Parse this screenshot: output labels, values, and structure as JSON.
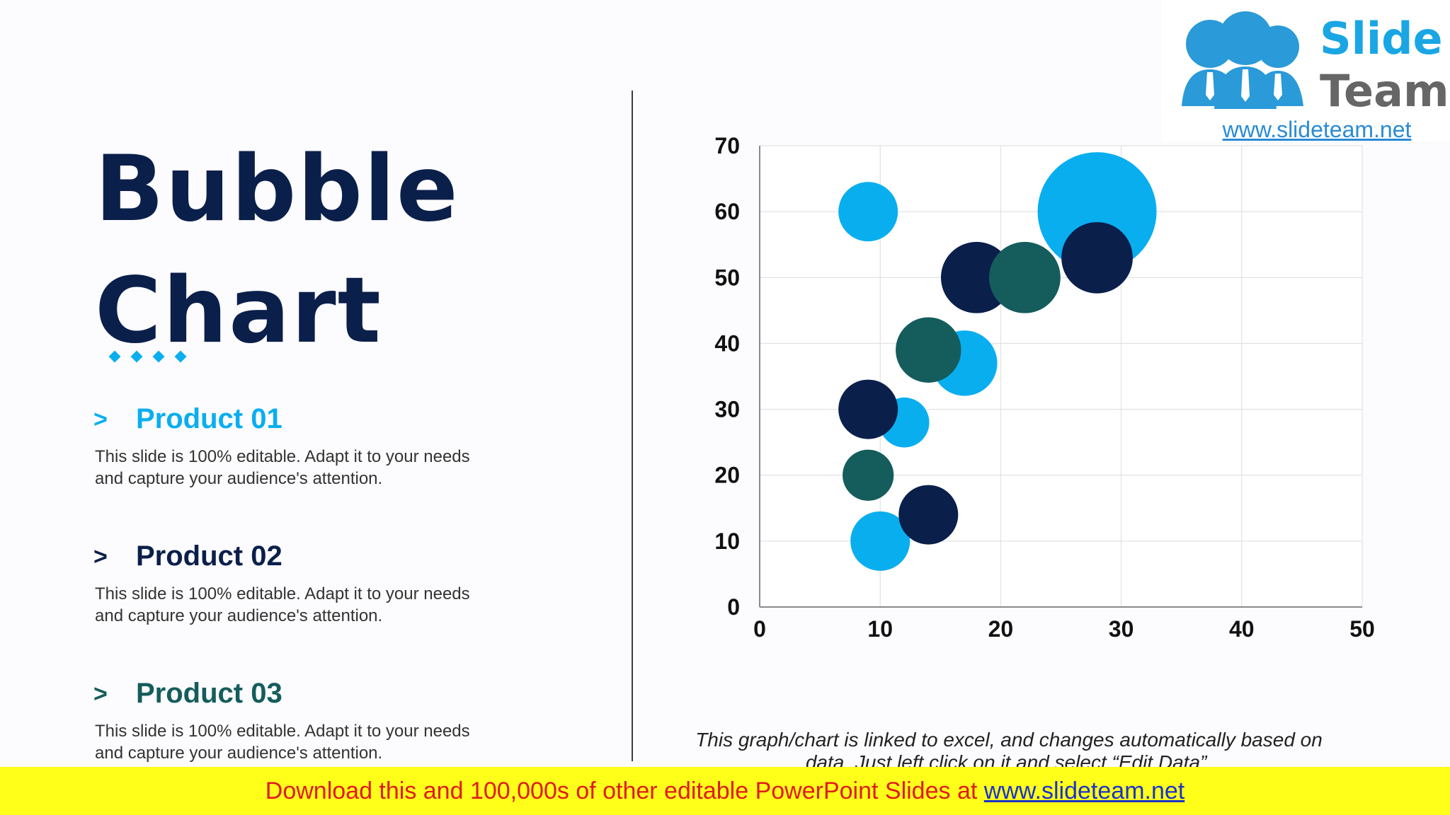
{
  "title": {
    "line1": "Bubble",
    "line2": "Chart"
  },
  "products": [
    {
      "chevron": ">",
      "name": "Product 01",
      "desc_line1": "This slide is 100% editable. Adapt it to your needs",
      "desc_line2": "and capture your audience's attention.",
      "color": "#09aeef"
    },
    {
      "chevron": ">",
      "name": "Product 02",
      "desc_line1": "This slide is 100% editable. Adapt it to your needs",
      "desc_line2": "and capture your audience's attention.",
      "color": "#0b1f4b"
    },
    {
      "chevron": ">",
      "name": "Product 03",
      "desc_line1": "This slide is 100% editable. Adapt it to your needs",
      "desc_line2": "and capture your audience's attention.",
      "color": "#145d5c"
    }
  ],
  "chart_data": {
    "type": "scatter",
    "xlim": [
      0,
      50
    ],
    "ylim": [
      0,
      70
    ],
    "x_ticks": [
      0,
      10,
      20,
      30,
      40,
      50
    ],
    "y_ticks": [
      0,
      10,
      20,
      30,
      40,
      50,
      60,
      70
    ],
    "grid": true,
    "series": [
      {
        "color": "#09aeef",
        "points": [
          {
            "x": 28,
            "y": 60,
            "size": 10
          },
          {
            "x": 9,
            "y": 60,
            "size": 5
          },
          {
            "x": 17,
            "y": 37,
            "size": 5.5
          },
          {
            "x": 12,
            "y": 28,
            "size": 4.2
          },
          {
            "x": 10,
            "y": 10,
            "size": 5
          }
        ]
      },
      {
        "color": "#0b1f4b",
        "points": [
          {
            "x": 18,
            "y": 50,
            "size": 6
          },
          {
            "x": 28,
            "y": 53,
            "size": 6
          },
          {
            "x": 9,
            "y": 30,
            "size": 5
          },
          {
            "x": 14,
            "y": 14,
            "size": 5
          }
        ]
      },
      {
        "color": "#145d5c",
        "points": [
          {
            "x": 22,
            "y": 50,
            "size": 6
          },
          {
            "x": 14,
            "y": 39,
            "size": 5.5
          },
          {
            "x": 9,
            "y": 20,
            "size": 4.3
          }
        ]
      }
    ]
  },
  "caption": "This graph/chart is linked to excel, and changes automatically based on data. Just left click on it and select “Edit Data”.",
  "logo": {
    "word1": "Slide",
    "word2": "Team",
    "url": "www.slideteam.net"
  },
  "banner": {
    "text": "Download this and 100,000s of other editable PowerPoint Slides at ",
    "link": "www.slideteam.net"
  },
  "colors": {
    "title": "#0b1f4b",
    "accent": "#09aeef",
    "banner_bg": "#ffff1a",
    "banner_text": "#e01b1b"
  }
}
